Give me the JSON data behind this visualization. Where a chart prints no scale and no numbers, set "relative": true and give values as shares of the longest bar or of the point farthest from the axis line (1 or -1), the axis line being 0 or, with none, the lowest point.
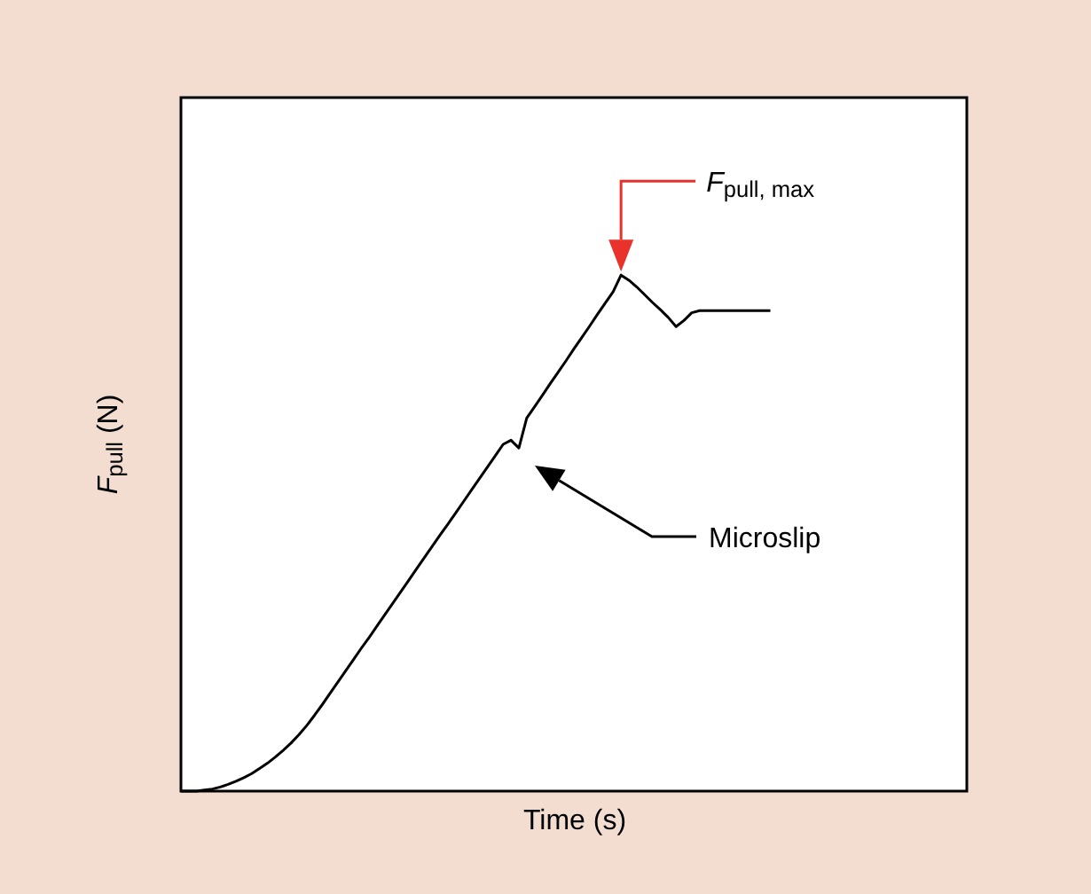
{
  "chart_data": {
    "type": "line",
    "relative": true,
    "xlabel": "Time (s)",
    "ylabel": "F$_{pull}$ (N)",
    "categories": [
      null,
      null,
      null,
      null,
      null,
      null,
      null,
      null,
      null,
      null,
      null,
      null,
      null,
      null,
      null,
      null,
      null,
      null,
      null,
      null,
      null,
      null,
      null,
      null,
      null,
      null,
      null,
      null,
      null,
      null,
      null,
      null,
      null,
      null,
      null,
      null,
      null,
      null,
      null,
      null,
      null,
      null,
      null,
      null,
      null,
      null,
      null,
      null,
      null,
      null,
      null,
      null,
      null,
      null,
      null,
      null,
      null,
      null,
      null,
      null,
      null,
      null,
      null,
      null,
      null,
      null,
      null,
      null,
      null,
      null,
      null,
      null,
      null,
      null,
      null,
      null,
      null,
      null,
      null,
      null,
      null,
      null,
      null,
      null,
      null,
      null,
      null,
      null,
      null,
      null,
      null,
      null,
      null,
      null,
      null,
      null,
      null,
      null,
      null,
      null,
      null
    ],
    "color": "#000000",
    "values": [
      0,
      0,
      0,
      0.002,
      0.004,
      0.008,
      0.013,
      0.019,
      0.026,
      0.034,
      0.044,
      0.054,
      0.066,
      0.079,
      0.093,
      0.109,
      0.127,
      0.147,
      0.168,
      0.19,
      0.212,
      0.234,
      0.256,
      0.278,
      0.299,
      0.321,
      0.343,
      0.365,
      0.387,
      0.409,
      0.431,
      0.453,
      0.475,
      0.497,
      0.518,
      0.54,
      0.562,
      0.584,
      0.606,
      0.628,
      0.65,
      0.672,
      0.68,
      0.665,
      0.723,
      0.745,
      0.767,
      0.79,
      0.812,
      0.834,
      0.857,
      0.879,
      0.901,
      0.924,
      0.946,
      0.968,
      1,
      0.99,
      0.977,
      0.962,
      0.947,
      0.933,
      0.918,
      0.9,
      0.912,
      0.927,
      0.931,
      0.931,
      0.931,
      0.931,
      0.931,
      0.931,
      0.931,
      0.931,
      0.931,
      0.931,
      null,
      null,
      null,
      null,
      null,
      null,
      null,
      null,
      null,
      null,
      null,
      null,
      null,
      null,
      null,
      null,
      null,
      null,
      null,
      null,
      null,
      null,
      null,
      null,
      null
    ],
    "annotations": [
      "F$_{pull, max}$",
      "Microslip"
    ]
  }
}
